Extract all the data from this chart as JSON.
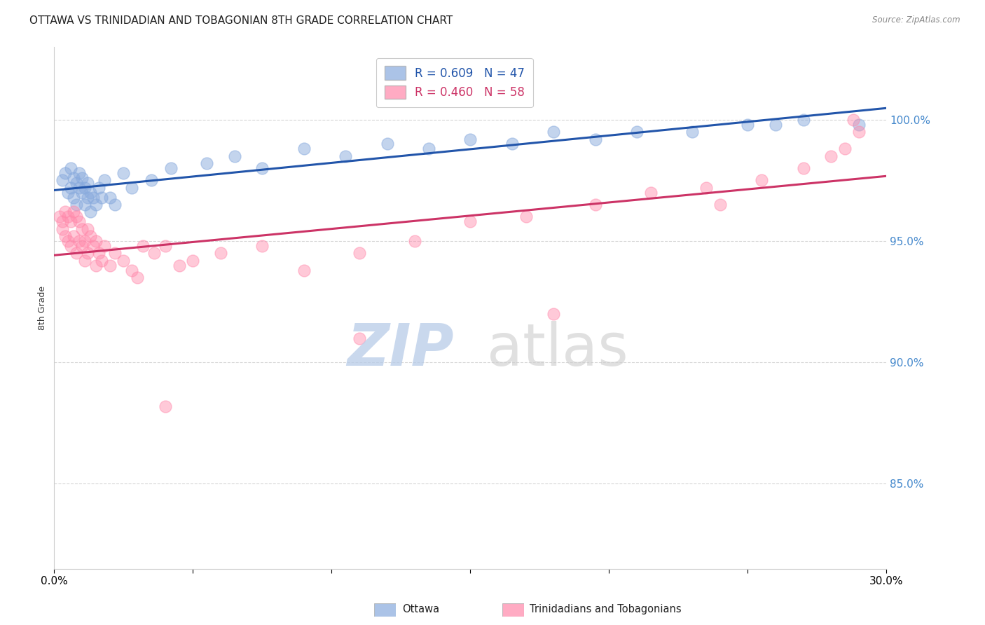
{
  "title": "OTTAWA VS TRINIDADIAN AND TOBAGONIAN 8TH GRADE CORRELATION CHART",
  "source": "Source: ZipAtlas.com",
  "ylabel": "8th Grade",
  "ytick_labels": [
    "85.0%",
    "90.0%",
    "95.0%",
    "100.0%"
  ],
  "ytick_values": [
    0.85,
    0.9,
    0.95,
    1.0
  ],
  "xmin": 0.0,
  "xmax": 0.3,
  "ymin": 0.815,
  "ymax": 1.03,
  "legend_label_1": "Ottawa",
  "legend_label_2": "Trinidadians and Tobagonians",
  "r1": 0.609,
  "n1": 47,
  "r2": 0.46,
  "n2": 58,
  "color_blue": "#88AADD",
  "color_pink": "#FF88AA",
  "color_blue_line": "#2255AA",
  "color_pink_line": "#CC3366",
  "color_grid": "#CCCCCC",
  "color_right_axis": "#4488CC",
  "ottawa_x": [
    0.003,
    0.004,
    0.005,
    0.006,
    0.006,
    0.007,
    0.007,
    0.008,
    0.008,
    0.009,
    0.009,
    0.01,
    0.01,
    0.011,
    0.011,
    0.012,
    0.012,
    0.013,
    0.013,
    0.014,
    0.015,
    0.016,
    0.017,
    0.018,
    0.02,
    0.022,
    0.025,
    0.028,
    0.035,
    0.042,
    0.055,
    0.065,
    0.075,
    0.09,
    0.105,
    0.12,
    0.135,
    0.15,
    0.165,
    0.18,
    0.195,
    0.21,
    0.23,
    0.25,
    0.26,
    0.27,
    0.29
  ],
  "ottawa_y": [
    0.975,
    0.978,
    0.97,
    0.972,
    0.98,
    0.968,
    0.976,
    0.965,
    0.974,
    0.972,
    0.978,
    0.97,
    0.976,
    0.965,
    0.972,
    0.968,
    0.974,
    0.962,
    0.97,
    0.968,
    0.965,
    0.972,
    0.968,
    0.975,
    0.968,
    0.965,
    0.978,
    0.972,
    0.975,
    0.98,
    0.982,
    0.985,
    0.98,
    0.988,
    0.985,
    0.99,
    0.988,
    0.992,
    0.99,
    0.995,
    0.992,
    0.995,
    0.995,
    0.998,
    0.998,
    1.0,
    0.998
  ],
  "tt_x": [
    0.002,
    0.003,
    0.003,
    0.004,
    0.004,
    0.005,
    0.005,
    0.006,
    0.006,
    0.007,
    0.007,
    0.008,
    0.008,
    0.009,
    0.009,
    0.01,
    0.01,
    0.011,
    0.011,
    0.012,
    0.012,
    0.013,
    0.014,
    0.015,
    0.015,
    0.016,
    0.017,
    0.018,
    0.02,
    0.022,
    0.025,
    0.028,
    0.032,
    0.036,
    0.04,
    0.045,
    0.05,
    0.06,
    0.075,
    0.09,
    0.11,
    0.13,
    0.15,
    0.17,
    0.195,
    0.215,
    0.235,
    0.255,
    0.27,
    0.28,
    0.285,
    0.288,
    0.04,
    0.11,
    0.18,
    0.24,
    0.29,
    0.03
  ],
  "tt_y": [
    0.96,
    0.958,
    0.955,
    0.962,
    0.952,
    0.96,
    0.95,
    0.958,
    0.948,
    0.962,
    0.952,
    0.96,
    0.945,
    0.958,
    0.95,
    0.955,
    0.948,
    0.95,
    0.942,
    0.955,
    0.945,
    0.952,
    0.948,
    0.95,
    0.94,
    0.945,
    0.942,
    0.948,
    0.94,
    0.945,
    0.942,
    0.938,
    0.948,
    0.945,
    0.948,
    0.94,
    0.942,
    0.945,
    0.948,
    0.938,
    0.945,
    0.95,
    0.958,
    0.96,
    0.965,
    0.97,
    0.972,
    0.975,
    0.98,
    0.985,
    0.988,
    1.0,
    0.882,
    0.91,
    0.92,
    0.965,
    0.995,
    0.935
  ]
}
